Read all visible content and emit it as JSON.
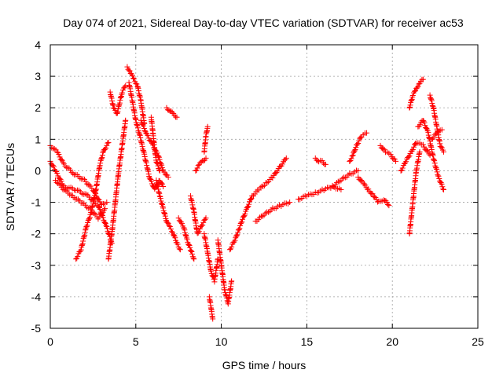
{
  "chart_data": {
    "type": "scatter",
    "title": "Day 074 of 2021, Sidereal Day-to-day VTEC variation (SDTVAR) for receiver ac53",
    "xlabel": "GPS time / hours",
    "ylabel": "SDTVAR / TECUs",
    "xlim": [
      0,
      25
    ],
    "ylim": [
      -5,
      4
    ],
    "xticks": [
      "0",
      "5",
      "10",
      "15",
      "20",
      "25"
    ],
    "yticks": [
      "-5",
      "-4",
      "-3",
      "-2",
      "-1",
      "0",
      "1",
      "2",
      "3",
      "4"
    ],
    "grid": true,
    "marker": "+",
    "color": "#ff0000",
    "series": [
      {
        "name": "s1",
        "x": [
          0.0,
          0.4,
          0.8,
          1.4,
          2.0,
          2.5,
          3.0,
          3.3
        ],
        "y": [
          0.8,
          0.6,
          0.2,
          -0.1,
          -0.3,
          -0.6,
          -1.1,
          -1.0
        ]
      },
      {
        "name": "s2",
        "x": [
          0.0,
          0.3,
          0.8,
          1.5,
          2.2,
          2.8,
          3.3,
          3.6
        ],
        "y": [
          0.3,
          0.0,
          -0.5,
          -0.6,
          -0.8,
          -1.1,
          -1.8,
          -2.3
        ]
      },
      {
        "name": "s3",
        "x": [
          0.3,
          0.8,
          1.3,
          1.8,
          2.3,
          2.8,
          3.2
        ],
        "y": [
          -0.3,
          -0.6,
          -0.8,
          -1.0,
          -1.2,
          -1.5,
          -1.2
        ]
      },
      {
        "name": "s4",
        "x": [
          1.5,
          1.8,
          2.1,
          2.4,
          2.7,
          2.9,
          3.1,
          3.4
        ],
        "y": [
          -2.8,
          -2.5,
          -1.8,
          -1.3,
          -0.5,
          0.2,
          0.6,
          0.9
        ]
      },
      {
        "name": "s5",
        "x": [
          3.4,
          3.6,
          3.8,
          4.0,
          4.2,
          4.4
        ],
        "y": [
          -2.8,
          -2.0,
          -1.0,
          0.0,
          0.8,
          1.6
        ]
      },
      {
        "name": "s6",
        "x": [
          3.5,
          3.7,
          3.9,
          4.2,
          4.4
        ],
        "y": [
          2.5,
          2.0,
          1.8,
          2.5,
          2.7
        ]
      },
      {
        "name": "s7",
        "x": [
          4.5,
          4.7,
          4.9,
          5.1,
          5.3,
          5.5
        ],
        "y": [
          3.3,
          3.1,
          2.9,
          2.7,
          2.2,
          1.5
        ]
      },
      {
        "name": "s8",
        "x": [
          4.6,
          4.8,
          5.0,
          5.2,
          5.5,
          5.8,
          6.1,
          6.4,
          6.6
        ],
        "y": [
          2.8,
          2.2,
          1.6,
          1.2,
          0.5,
          -0.2,
          -0.6,
          -0.3,
          -0.5
        ]
      },
      {
        "name": "s9",
        "x": [
          5.3,
          5.6,
          6.0,
          6.3,
          6.6,
          6.9
        ],
        "y": [
          1.6,
          1.2,
          0.8,
          0.5,
          0.0,
          -0.2
        ]
      },
      {
        "name": "s10",
        "x": [
          6.8,
          7.0,
          7.2,
          7.4
        ],
        "y": [
          2.0,
          1.9,
          1.8,
          1.7
        ]
      },
      {
        "name": "s11",
        "x": [
          6.2,
          6.4,
          6.6,
          6.8,
          7.0,
          7.2,
          7.4,
          7.6
        ],
        "y": [
          -0.3,
          -0.8,
          -1.2,
          -1.6,
          -1.8,
          -2.0,
          -2.3,
          -2.5
        ]
      },
      {
        "name": "s12",
        "x": [
          5.9,
          6.0,
          6.1,
          6.2,
          6.4
        ],
        "y": [
          1.7,
          1.2,
          0.7,
          0.3,
          0.0
        ]
      },
      {
        "name": "s13",
        "x": [
          7.5,
          7.8,
          8.0,
          8.2,
          8.4
        ],
        "y": [
          -1.5,
          -1.8,
          -2.2,
          -2.5,
          -2.8
        ]
      },
      {
        "name": "s14",
        "x": [
          8.2,
          8.4,
          8.6,
          8.9,
          9.1
        ],
        "y": [
          -0.8,
          -1.3,
          -2.0,
          -1.7,
          -1.5
        ]
      },
      {
        "name": "s15",
        "x": [
          8.5,
          8.7,
          8.9,
          9.1
        ],
        "y": [
          0.0,
          0.2,
          0.3,
          0.4
        ]
      },
      {
        "name": "s16",
        "x": [
          9.0,
          9.2,
          9.4,
          9.6,
          9.8
        ],
        "y": [
          -2.0,
          -2.6,
          -3.2,
          -3.5,
          -2.8
        ]
      },
      {
        "name": "s17",
        "x": [
          9.3,
          9.5
        ],
        "y": [
          -4.0,
          -4.7
        ]
      },
      {
        "name": "s18",
        "x": [
          9.0,
          9.1,
          9.2
        ],
        "y": [
          0.6,
          1.1,
          1.4
        ]
      },
      {
        "name": "s19",
        "x": [
          9.8,
          10.0,
          10.2,
          10.4,
          10.6
        ],
        "y": [
          -2.2,
          -3.0,
          -3.8,
          -4.2,
          -3.5
        ]
      },
      {
        "name": "s20",
        "x": [
          10.5,
          10.8,
          11.0,
          11.2,
          11.5,
          11.8
        ],
        "y": [
          -2.5,
          -2.2,
          -1.9,
          -1.6,
          -1.2,
          -0.8
        ]
      },
      {
        "name": "s21",
        "x": [
          11.8,
          12.2,
          12.6,
          13.0,
          13.4,
          13.8
        ],
        "y": [
          -0.8,
          -0.6,
          -0.4,
          -0.2,
          0.1,
          0.4
        ]
      },
      {
        "name": "s22",
        "x": [
          12.0,
          12.5,
          13.0,
          13.5,
          14.0
        ],
        "y": [
          -1.6,
          -1.4,
          -1.2,
          -1.1,
          -1.0
        ]
      },
      {
        "name": "s23",
        "x": [
          14.5,
          15.0,
          15.5,
          16.0,
          16.5,
          17.0
        ],
        "y": [
          -0.9,
          -0.8,
          -0.7,
          -0.6,
          -0.5,
          -0.6
        ]
      },
      {
        "name": "s24",
        "x": [
          15.5,
          15.7,
          15.9,
          16.1
        ],
        "y": [
          0.4,
          0.3,
          0.3,
          0.2
        ]
      },
      {
        "name": "s25",
        "x": [
          16.5,
          17.0,
          17.5,
          18.0
        ],
        "y": [
          -0.5,
          -0.3,
          -0.1,
          0.0
        ]
      },
      {
        "name": "s26",
        "x": [
          17.5,
          17.7,
          17.9,
          18.2,
          18.5
        ],
        "y": [
          0.3,
          0.5,
          0.8,
          1.1,
          1.2
        ]
      },
      {
        "name": "s27",
        "x": [
          18.0,
          18.3,
          18.6,
          18.9,
          19.2,
          19.5,
          19.8
        ],
        "y": [
          -0.2,
          -0.4,
          -0.6,
          -0.8,
          -1.0,
          -0.9,
          -1.1
        ]
      },
      {
        "name": "s28",
        "x": [
          19.3,
          19.6,
          19.9,
          20.2
        ],
        "y": [
          0.8,
          0.6,
          0.5,
          0.3
        ]
      },
      {
        "name": "s29",
        "x": [
          20.5,
          20.8,
          21.1,
          21.4,
          21.8,
          22.2
        ],
        "y": [
          0.0,
          0.3,
          0.6,
          0.9,
          0.8,
          0.5
        ]
      },
      {
        "name": "s30",
        "x": [
          21.0,
          21.2,
          21.4,
          21.6,
          21.8
        ],
        "y": [
          2.0,
          2.4,
          2.6,
          2.8,
          2.9
        ]
      },
      {
        "name": "s31",
        "x": [
          21.0,
          21.2,
          21.4,
          21.6
        ],
        "y": [
          -2.0,
          -1.0,
          0.0,
          0.6
        ]
      },
      {
        "name": "s32",
        "x": [
          22.2,
          22.4,
          22.6,
          22.8,
          23.0
        ],
        "y": [
          2.4,
          2.0,
          1.4,
          0.8,
          0.6
        ]
      },
      {
        "name": "s33",
        "x": [
          21.5,
          21.8,
          22.1,
          22.4,
          22.7,
          23.0
        ],
        "y": [
          1.4,
          1.6,
          1.2,
          0.4,
          -0.2,
          -0.6
        ]
      },
      {
        "name": "s34",
        "x": [
          22.3,
          22.6,
          22.9
        ],
        "y": [
          1.0,
          1.2,
          1.3
        ]
      }
    ]
  }
}
